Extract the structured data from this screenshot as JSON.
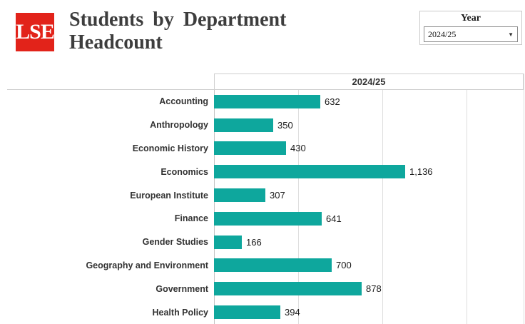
{
  "header": {
    "logo_text": "LSE",
    "logo_color": "#e2231a",
    "title_line1": "Students by Department",
    "title_line2": "Headcount",
    "year_filter": {
      "label": "Year",
      "selected": "2024/25"
    }
  },
  "chart_data": {
    "type": "bar",
    "orientation": "horizontal",
    "title": "Students by Department Headcount",
    "column_header": "2024/25",
    "categories": [
      "Accounting",
      "Anthropology",
      "Economic History",
      "Economics",
      "European Institute",
      "Finance",
      "Gender Studies",
      "Geography and Environment",
      "Government",
      "Health Policy"
    ],
    "values": [
      632,
      350,
      430,
      1136,
      307,
      641,
      166,
      700,
      878,
      394
    ],
    "value_labels": [
      "632",
      "350",
      "430",
      "1,136",
      "307",
      "641",
      "166",
      "700",
      "878",
      "394"
    ],
    "bar_color": "#0ea79d",
    "xlabel": "",
    "ylabel": "",
    "xlim": [
      0,
      1840
    ],
    "gridlines": [
      500,
      1000,
      1500
    ],
    "grid": true,
    "legend": false
  }
}
